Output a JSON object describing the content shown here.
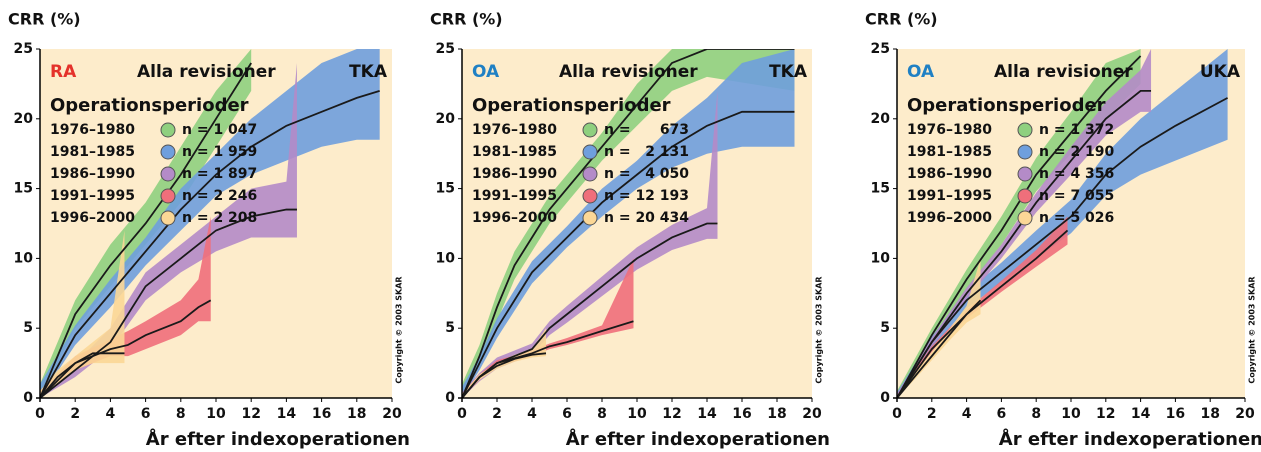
{
  "chart_data": [
    {
      "type": "line",
      "title": "CRR (%)",
      "xlabel": "År efter indexoperationen",
      "group": "RA",
      "group_color": "#e4322b",
      "subtitle": "Alla revisioner",
      "procedure": "TKA",
      "legend_title": "Operationsperioder",
      "copyright": "Copyright © 2003 SKAR",
      "xlim": [
        0,
        20
      ],
      "ylim": [
        0,
        25
      ],
      "xticks": [
        0,
        2,
        4,
        6,
        8,
        10,
        12,
        14,
        16,
        18,
        20
      ],
      "yticks": [
        0,
        5,
        10,
        15,
        20,
        25
      ],
      "series": [
        {
          "name": "1976–1980",
          "n": "n = 1 047",
          "color": "#8fd07f",
          "x": [
            0,
            2,
            4,
            6,
            8,
            10,
            12
          ],
          "values": [
            0,
            6,
            9.5,
            12.5,
            16,
            20,
            24
          ],
          "lower": [
            0,
            5,
            8,
            11,
            14,
            18,
            22
          ],
          "upper": [
            1,
            7,
            11,
            14,
            18,
            22,
            25
          ]
        },
        {
          "name": "1981–1985",
          "n": "n = 1 959",
          "color": "#6f9fdd",
          "x": [
            0,
            2,
            4,
            6,
            8,
            10,
            12,
            14,
            16,
            18,
            19.3
          ],
          "values": [
            0,
            4.5,
            7.5,
            10.5,
            13.5,
            16,
            18,
            19.5,
            20.5,
            21.5,
            22
          ],
          "lower": [
            0,
            3.8,
            6.5,
            9.5,
            12,
            14.5,
            16,
            17,
            18,
            18.5,
            18.5
          ],
          "upper": [
            1,
            5.2,
            8.5,
            11.5,
            15,
            17.5,
            20,
            22,
            24,
            25,
            25
          ]
        },
        {
          "name": "1986–1990",
          "n": "n = 1 897",
          "color": "#b48bc8",
          "x": [
            0,
            2,
            4,
            6,
            8,
            10,
            12,
            14,
            14.6
          ],
          "values": [
            0,
            2,
            4,
            8,
            10,
            12,
            13,
            13.5,
            13.5
          ],
          "lower": [
            0,
            1.5,
            3.5,
            7,
            9,
            10.5,
            11.5,
            11.5,
            11.5
          ],
          "upper": [
            0.5,
            2.5,
            5,
            9,
            11,
            13,
            15,
            15.5,
            24
          ]
        },
        {
          "name": "1991–1995",
          "n": "n = 2 246",
          "color": "#ef6f7b",
          "x": [
            0,
            2,
            4,
            5,
            6,
            8,
            9,
            9.7
          ],
          "values": [
            0,
            2.5,
            3.5,
            3.8,
            4.5,
            5.5,
            6.5,
            7
          ],
          "lower": [
            0,
            2,
            3,
            3,
            3.5,
            4.5,
            5.5,
            5.5
          ],
          "upper": [
            0.5,
            3,
            4.2,
            4.8,
            5.5,
            7,
            8.5,
            13
          ]
        },
        {
          "name": "1996–2000",
          "n": "n = 2 208",
          "color": "#fbd796",
          "x": [
            0,
            1,
            2,
            3,
            4,
            4.8
          ],
          "values": [
            0,
            1.5,
            2.5,
            3.2,
            3.2,
            3.2
          ],
          "lower": [
            0,
            1,
            2,
            2.5,
            2.5,
            2.5
          ],
          "upper": [
            0.5,
            2,
            3,
            4,
            5,
            12
          ]
        }
      ]
    },
    {
      "type": "line",
      "title": "CRR (%)",
      "xlabel": "År efter indexoperationen",
      "group": "OA",
      "group_color": "#1f80c4",
      "subtitle": "Alla revisioner",
      "procedure": "TKA",
      "legend_title": "Operationsperioder",
      "copyright": "Copyright © 2003 SKAR",
      "xlim": [
        0,
        20
      ],
      "ylim": [
        0,
        25
      ],
      "xticks": [
        0,
        2,
        4,
        6,
        8,
        10,
        12,
        14,
        16,
        18,
        20
      ],
      "yticks": [
        0,
        5,
        10,
        15,
        20,
        25
      ],
      "series": [
        {
          "name": "1976–1980",
          "n": "n =      673",
          "color": "#8fd07f",
          "x": [
            0,
            1,
            2,
            3,
            4,
            5,
            6,
            8,
            10,
            12,
            14,
            19
          ],
          "values": [
            0,
            3,
            6.5,
            9.5,
            11.5,
            13.5,
            15,
            18,
            21,
            24,
            25,
            25
          ],
          "lower": [
            0,
            2.3,
            5.5,
            8.5,
            10.5,
            12.5,
            14,
            17,
            19.5,
            22,
            23,
            22
          ],
          "upper": [
            1,
            3.8,
            7.5,
            10.5,
            12.5,
            14.5,
            16,
            19,
            22.5,
            25,
            25,
            25
          ]
        },
        {
          "name": "1981–1985",
          "n": "n =   2 131",
          "color": "#6f9fdd",
          "x": [
            0,
            1,
            2,
            4,
            6,
            8,
            10,
            12,
            14,
            16,
            19
          ],
          "values": [
            0,
            2.5,
            5,
            9,
            11.5,
            14,
            16,
            18,
            19.5,
            20.5,
            20.5
          ],
          "lower": [
            0,
            2,
            4.3,
            8.2,
            10.8,
            13,
            15,
            16.5,
            17.5,
            18,
            18
          ],
          "upper": [
            0.8,
            3,
            5.7,
            9.8,
            12.3,
            15,
            17,
            19.5,
            21.5,
            24,
            25
          ]
        },
        {
          "name": "1986–1990",
          "n": "n =   4 050",
          "color": "#b48bc8",
          "x": [
            0,
            1,
            2,
            4,
            5,
            6,
            8,
            10,
            12,
            14,
            14.6
          ],
          "values": [
            0,
            1.5,
            2.5,
            3.5,
            5,
            6,
            8,
            10,
            11.5,
            12.5,
            12.5
          ],
          "lower": [
            0,
            1.2,
            2.1,
            3.1,
            4.5,
            5.4,
            7.3,
            9.2,
            10.6,
            11.4,
            11.4
          ],
          "upper": [
            0.4,
            1.8,
            2.9,
            3.9,
            5.5,
            6.6,
            8.7,
            10.8,
            12.4,
            13.6,
            22
          ]
        },
        {
          "name": "1991–1995",
          "n": "n = 12 193",
          "color": "#ef6f7b",
          "x": [
            0,
            1,
            2,
            4,
            5,
            6,
            8,
            9.8
          ],
          "values": [
            0,
            1.5,
            2.5,
            3.2,
            3.7,
            4,
            4.8,
            5.5
          ],
          "lower": [
            0,
            1.3,
            2.3,
            3,
            3.5,
            3.8,
            4.5,
            5
          ],
          "upper": [
            0.3,
            1.7,
            2.7,
            3.4,
            3.9,
            4.3,
            5.2,
            10
          ]
        },
        {
          "name": "1996–2000",
          "n": "n = 20 434",
          "color": "#fbd796",
          "x": [
            0,
            1,
            2,
            3,
            4,
            4.8
          ],
          "values": [
            0,
            1.5,
            2.3,
            2.8,
            3.1,
            3.2
          ],
          "lower": [
            0,
            1.3,
            2.1,
            2.6,
            2.9,
            3
          ],
          "upper": [
            0.3,
            1.7,
            2.5,
            3.1,
            3.5,
            5
          ]
        }
      ]
    },
    {
      "type": "line",
      "title": "CRR (%)",
      "xlabel": "År efter indexoperationen",
      "group": "OA",
      "group_color": "#1f80c4",
      "subtitle": "Alla revisioner",
      "procedure": "UKA",
      "legend_title": "Operationsperioder",
      "copyright": "Copyright © 2003 SKAR",
      "xlim": [
        0,
        20
      ],
      "ylim": [
        0,
        25
      ],
      "xticks": [
        0,
        2,
        4,
        6,
        8,
        10,
        12,
        14,
        16,
        18,
        20
      ],
      "yticks": [
        0,
        5,
        10,
        15,
        20,
        25
      ],
      "series": [
        {
          "name": "1976–1980",
          "n": "n = 1 372",
          "color": "#8fd07f",
          "x": [
            0,
            2,
            4,
            6,
            8,
            10,
            12,
            14
          ],
          "values": [
            0,
            4.5,
            8.5,
            12,
            16,
            19,
            22,
            24.5
          ],
          "lower": [
            0,
            4,
            7.8,
            11,
            14.8,
            17.5,
            20,
            22.5
          ],
          "upper": [
            0.5,
            5,
            9.2,
            13,
            17.2,
            20.5,
            24,
            25
          ]
        },
        {
          "name": "1981–1985",
          "n": "n = 2 190",
          "color": "#6f9fdd",
          "x": [
            0,
            2,
            4,
            6,
            8,
            10,
            12,
            14,
            16,
            19
          ],
          "values": [
            0,
            4,
            7,
            9,
            11,
            13,
            16,
            18,
            19.5,
            21.5
          ],
          "lower": [
            0,
            3.6,
            6.4,
            8.3,
            10,
            11.8,
            14.5,
            16,
            17,
            18.5
          ],
          "upper": [
            0.4,
            4.4,
            7.6,
            9.7,
            12,
            14.2,
            17.5,
            20,
            22,
            25
          ]
        },
        {
          "name": "1986–1990",
          "n": "n = 4 356",
          "color": "#b48bc8",
          "x": [
            0,
            2,
            4,
            6,
            8,
            10,
            12,
            14,
            14.6
          ],
          "values": [
            0,
            4,
            7.5,
            10.5,
            14,
            17,
            20,
            22,
            22
          ],
          "lower": [
            0,
            3.7,
            7.1,
            10,
            13.3,
            16,
            18.8,
            20.5,
            20.5
          ],
          "upper": [
            0.3,
            4.3,
            7.9,
            11,
            14.7,
            18,
            21.2,
            23.5,
            25
          ]
        },
        {
          "name": "1991–1995",
          "n": "n = 7 055",
          "color": "#ef6f7b",
          "x": [
            0,
            2,
            4,
            6,
            8,
            9.8
          ],
          "values": [
            0,
            3.5,
            6,
            8,
            10,
            12
          ],
          "lower": [
            0,
            3.3,
            5.7,
            7.6,
            9.4,
            11
          ],
          "upper": [
            0.2,
            3.7,
            6.3,
            8.4,
            10.6,
            13
          ]
        },
        {
          "name": "1996–2000",
          "n": "n = 5 026",
          "color": "#fbd796",
          "x": [
            0,
            1,
            2,
            3,
            4,
            4.8
          ],
          "values": [
            0,
            1.5,
            3,
            4.5,
            6,
            7
          ],
          "lower": [
            0,
            1.3,
            2.7,
            4.1,
            5.4,
            6
          ],
          "upper": [
            0.2,
            1.7,
            3.3,
            4.9,
            6.6,
            10
          ]
        }
      ]
    }
  ]
}
